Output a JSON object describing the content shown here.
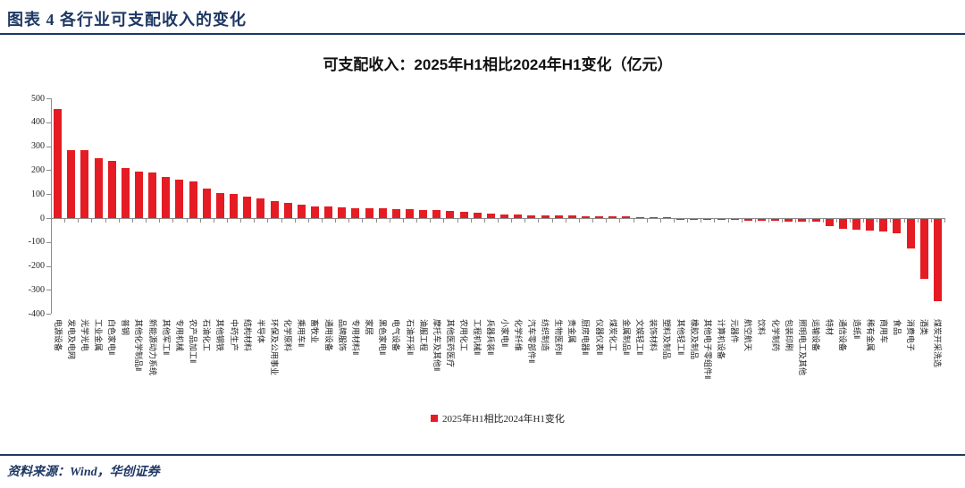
{
  "header": {
    "title": "图表 4  各行业可支配收入的变化"
  },
  "footer": {
    "source": "资料来源：Wind，华创证券"
  },
  "chart_data": {
    "type": "bar",
    "title": "可支配收入：2025年H1相比2024年H1变化（亿元）",
    "legend": [
      "2025年H1相比2024年H1变化"
    ],
    "legend_position": "bottom-center",
    "grid": false,
    "ylim": [
      -400,
      500
    ],
    "ytick_step": 100,
    "bar_color": "#E51C23",
    "accent_color": "#1F3864",
    "categories": [
      "电源设备",
      "发电及电网",
      "光学光电",
      "工业金属",
      "白色家电Ⅱ",
      "普钢",
      "其他化学制品Ⅱ",
      "新能源动力系统",
      "其他军工Ⅱ",
      "专用机械",
      "农产品加工Ⅱ",
      "石油化工",
      "其他钢铁",
      "中药生产",
      "结构材料",
      "半导体",
      "环保及公用事业",
      "化学原料",
      "乘用车Ⅱ",
      "畜牧业",
      "通用设备",
      "品牌服饰",
      "专用材料Ⅱ",
      "家居",
      "黑色家电Ⅱ",
      "电气设备",
      "石油开采Ⅱ",
      "油服工程",
      "摩托车及其他Ⅱ",
      "其他医药医疗",
      "农用化工",
      "工程机械Ⅱ",
      "兵器兵装Ⅱ",
      "小家电Ⅱ",
      "化学纤维",
      "汽车零部件Ⅱ",
      "纺织制造",
      "生物医药Ⅱ",
      "贵金属",
      "厨房电器Ⅱ",
      "仪器仪表Ⅱ",
      "煤炭化工",
      "金属制品Ⅱ",
      "文娱轻工Ⅱ",
      "装饰材料",
      "塑料及制品",
      "其他轻工Ⅱ",
      "橡胶及制品",
      "其他电子零组件Ⅱ",
      "计算机设备",
      "元器件",
      "航空航天",
      "饮料",
      "化学制药",
      "包装印刷",
      "照明电工及其他",
      "运输设备",
      "特材",
      "通信设备",
      "造纸Ⅱ",
      "稀有金属",
      "商用车",
      "食品",
      "消费电子",
      "酒类",
      "煤炭开采洗选"
    ],
    "values": [
      455,
      285,
      283,
      249,
      240,
      210,
      193,
      192,
      173,
      160,
      153,
      123,
      103,
      99,
      90,
      83,
      72,
      63,
      57,
      48,
      47,
      44,
      42,
      41,
      40,
      39,
      37,
      35,
      33,
      29,
      27,
      23,
      20,
      16,
      14,
      13,
      12,
      11,
      10,
      9,
      8,
      7,
      6,
      4,
      3,
      2,
      -1,
      -2,
      -3,
      -4,
      -5,
      -6,
      -8,
      -9,
      -10,
      -11,
      -13,
      -28,
      -42,
      -46,
      -49,
      -53,
      -60,
      -122,
      -250,
      -345
    ]
  }
}
